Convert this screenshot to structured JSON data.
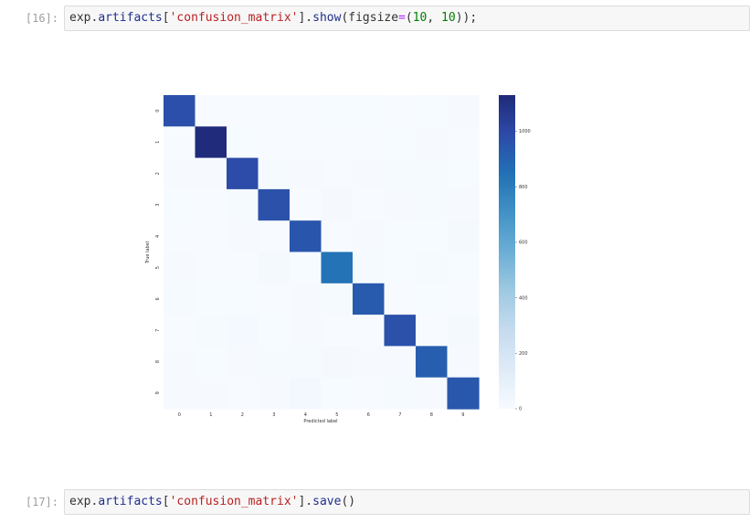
{
  "cells": [
    {
      "prompt": "[16]:",
      "code": {
        "t1": "exp",
        "t2": ".",
        "t3": "artifacts",
        "t4": "[",
        "t5": "'confusion_matrix'",
        "t6": "].",
        "t7": "show",
        "t8": "(figsize",
        "t9": "=",
        "t10": "(",
        "t11": "10",
        "t12": ", ",
        "t13": "10",
        "t14": "));"
      }
    },
    {
      "prompt": "[17]:",
      "code": {
        "t1": "exp",
        "t2": ".",
        "t3": "artifacts",
        "t4": "[",
        "t5": "'confusion_matrix'",
        "t6": "].",
        "t7": "save",
        "t8": "()"
      }
    }
  ],
  "chart_data": {
    "type": "heatmap",
    "title": "",
    "xlabel": "Predicted label",
    "ylabel": "True label",
    "x_categories": [
      "0",
      "1",
      "2",
      "3",
      "4",
      "5",
      "6",
      "7",
      "8",
      "9"
    ],
    "y_categories": [
      "0",
      "1",
      "2",
      "3",
      "4",
      "5",
      "6",
      "7",
      "8",
      "9"
    ],
    "values": [
      [
        970,
        0,
        2,
        1,
        0,
        3,
        4,
        2,
        3,
        5
      ],
      [
        0,
        1120,
        3,
        2,
        1,
        1,
        2,
        3,
        6,
        2
      ],
      [
        8,
        5,
        985,
        9,
        6,
        2,
        7,
        9,
        12,
        3
      ],
      [
        3,
        2,
        12,
        965,
        1,
        14,
        1,
        8,
        9,
        7
      ],
      [
        1,
        2,
        5,
        2,
        950,
        0,
        8,
        3,
        4,
        15
      ],
      [
        7,
        2,
        1,
        18,
        3,
        840,
        9,
        3,
        10,
        4
      ],
      [
        9,
        3,
        3,
        1,
        8,
        11,
        930,
        1,
        3,
        0
      ],
      [
        2,
        10,
        22,
        4,
        6,
        1,
        0,
        965,
        2,
        16
      ],
      [
        6,
        4,
        5,
        12,
        9,
        14,
        5,
        8,
        915,
        7
      ],
      [
        8,
        7,
        1,
        7,
        25,
        4,
        1,
        10,
        6,
        940
      ]
    ],
    "colorbar": {
      "min": 0,
      "max": 1130,
      "ticks": [
        0,
        200,
        400,
        600,
        800,
        1000
      ],
      "colormap": "Blues",
      "stops": [
        "#f7fbff",
        "#deebf7",
        "#c6dbef",
        "#9ecae1",
        "#6baed6",
        "#4292c6",
        "#2171b5",
        "#2d4aa8",
        "#1f2a78"
      ]
    },
    "grid": false,
    "legend": "colorbar-right"
  }
}
